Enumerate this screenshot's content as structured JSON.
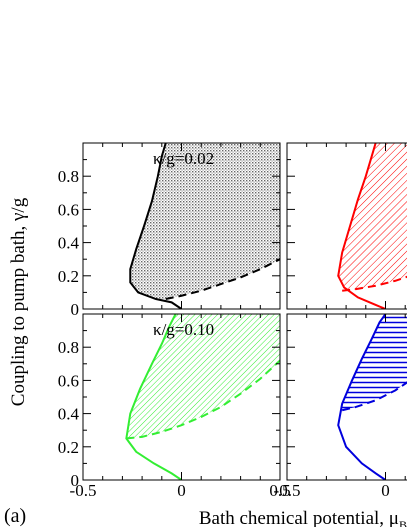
{
  "figure": {
    "panel_letter": "(a)",
    "xlabel": "Bath chemical potential, μ",
    "xlabel_sub": "B",
    "ylabel": "Coupling to pump bath, γ/g",
    "colors": {
      "black": "#000000",
      "red": "#ff0000",
      "green": "#33ee33",
      "blue": "#0000dd"
    }
  },
  "chart_data": [
    {
      "type": "area",
      "panel": "top-left",
      "annotation": "κ/g=0.02",
      "color": "#000000",
      "hatch": "dots",
      "xlim": [
        -0.5,
        0.5
      ],
      "ylim": [
        0,
        1.0
      ],
      "xticks": [],
      "yticks": [
        0,
        0.2,
        0.4,
        0.6,
        0.8
      ],
      "solid_curve": {
        "x": [
          0.0,
          -0.05,
          -0.13,
          -0.22,
          -0.26,
          -0.26,
          -0.23,
          -0.19,
          -0.15,
          -0.12,
          -0.1,
          -0.08
        ],
        "y": [
          0.0,
          0.04,
          0.06,
          0.1,
          0.16,
          0.24,
          0.36,
          0.5,
          0.65,
          0.8,
          0.92,
          1.0
        ]
      },
      "dashed_curve": {
        "x": [
          -0.08,
          0.0,
          0.1,
          0.2,
          0.3,
          0.4,
          0.5
        ],
        "y": [
          0.06,
          0.08,
          0.11,
          0.15,
          0.19,
          0.24,
          0.3
        ]
      },
      "shaded_region": "between solid and dashed curves"
    },
    {
      "type": "area",
      "panel": "top-right",
      "annotation": "",
      "color": "#ff0000",
      "hatch": "diagonal",
      "xlim": [
        -0.5,
        0.5
      ],
      "ylim": [
        0,
        1.0
      ],
      "xticks": [],
      "yticks": [],
      "solid_curve": {
        "x": [
          0.0,
          -0.06,
          -0.14,
          -0.21,
          -0.24,
          -0.22,
          -0.18,
          -0.14,
          -0.1,
          -0.07,
          -0.05
        ],
        "y": [
          0.0,
          0.03,
          0.07,
          0.13,
          0.2,
          0.34,
          0.5,
          0.66,
          0.8,
          0.92,
          1.0
        ]
      },
      "dashed_curve": {
        "x": [
          -0.22,
          -0.15,
          -0.05,
          0.05,
          0.15,
          0.25,
          0.35,
          0.5
        ],
        "y": [
          0.11,
          0.12,
          0.14,
          0.17,
          0.21,
          0.26,
          0.32,
          0.42
        ]
      },
      "shaded_region": "between solid and dashed curves"
    },
    {
      "type": "area",
      "panel": "bottom-left",
      "annotation": "κ/g=0.10",
      "color": "#33ee33",
      "hatch": "diagonal",
      "xlim": [
        -0.5,
        0.5
      ],
      "ylim": [
        0,
        1.0
      ],
      "xticks": [
        -0.5,
        0,
        0.5
      ],
      "yticks": [
        0,
        0.2,
        0.4,
        0.6,
        0.8
      ],
      "solid_curve": {
        "x": [
          0.0,
          -0.05,
          -0.14,
          -0.23,
          -0.28,
          -0.26,
          -0.21,
          -0.15,
          -0.1,
          -0.06,
          -0.03
        ],
        "y": [
          0.0,
          0.04,
          0.1,
          0.17,
          0.25,
          0.4,
          0.55,
          0.7,
          0.82,
          0.93,
          1.0
        ]
      },
      "dashed_curve": {
        "x": [
          -0.28,
          -0.2,
          -0.1,
          0.0,
          0.1,
          0.2,
          0.3,
          0.4,
          0.5,
          0.6,
          0.7
        ],
        "y": [
          0.25,
          0.26,
          0.29,
          0.33,
          0.38,
          0.44,
          0.52,
          0.61,
          0.72,
          0.85,
          1.0
        ]
      },
      "shaded_region": "between solid and dashed curves"
    },
    {
      "type": "area",
      "panel": "bottom-right",
      "annotation": "",
      "color": "#0000dd",
      "hatch": "horizontal",
      "xlim": [
        -0.5,
        0.5
      ],
      "ylim": [
        0,
        1.0
      ],
      "xticks": [
        -0.5,
        0
      ],
      "yticks": [],
      "solid_curve": {
        "x": [
          0.0,
          -0.05,
          -0.12,
          -0.2,
          -0.24,
          -0.22,
          -0.17,
          -0.12,
          -0.07,
          -0.03,
          0.0
        ],
        "y": [
          0.0,
          0.04,
          0.1,
          0.2,
          0.33,
          0.46,
          0.6,
          0.73,
          0.85,
          0.95,
          1.0
        ]
      },
      "dashed_curve": {
        "x": [
          -0.22,
          -0.15,
          -0.05,
          0.05,
          0.15,
          0.25,
          0.35
        ],
        "y": [
          0.42,
          0.44,
          0.48,
          0.54,
          0.62,
          0.72,
          0.85
        ]
      },
      "shaded_region": "between solid and dashed curves"
    }
  ]
}
